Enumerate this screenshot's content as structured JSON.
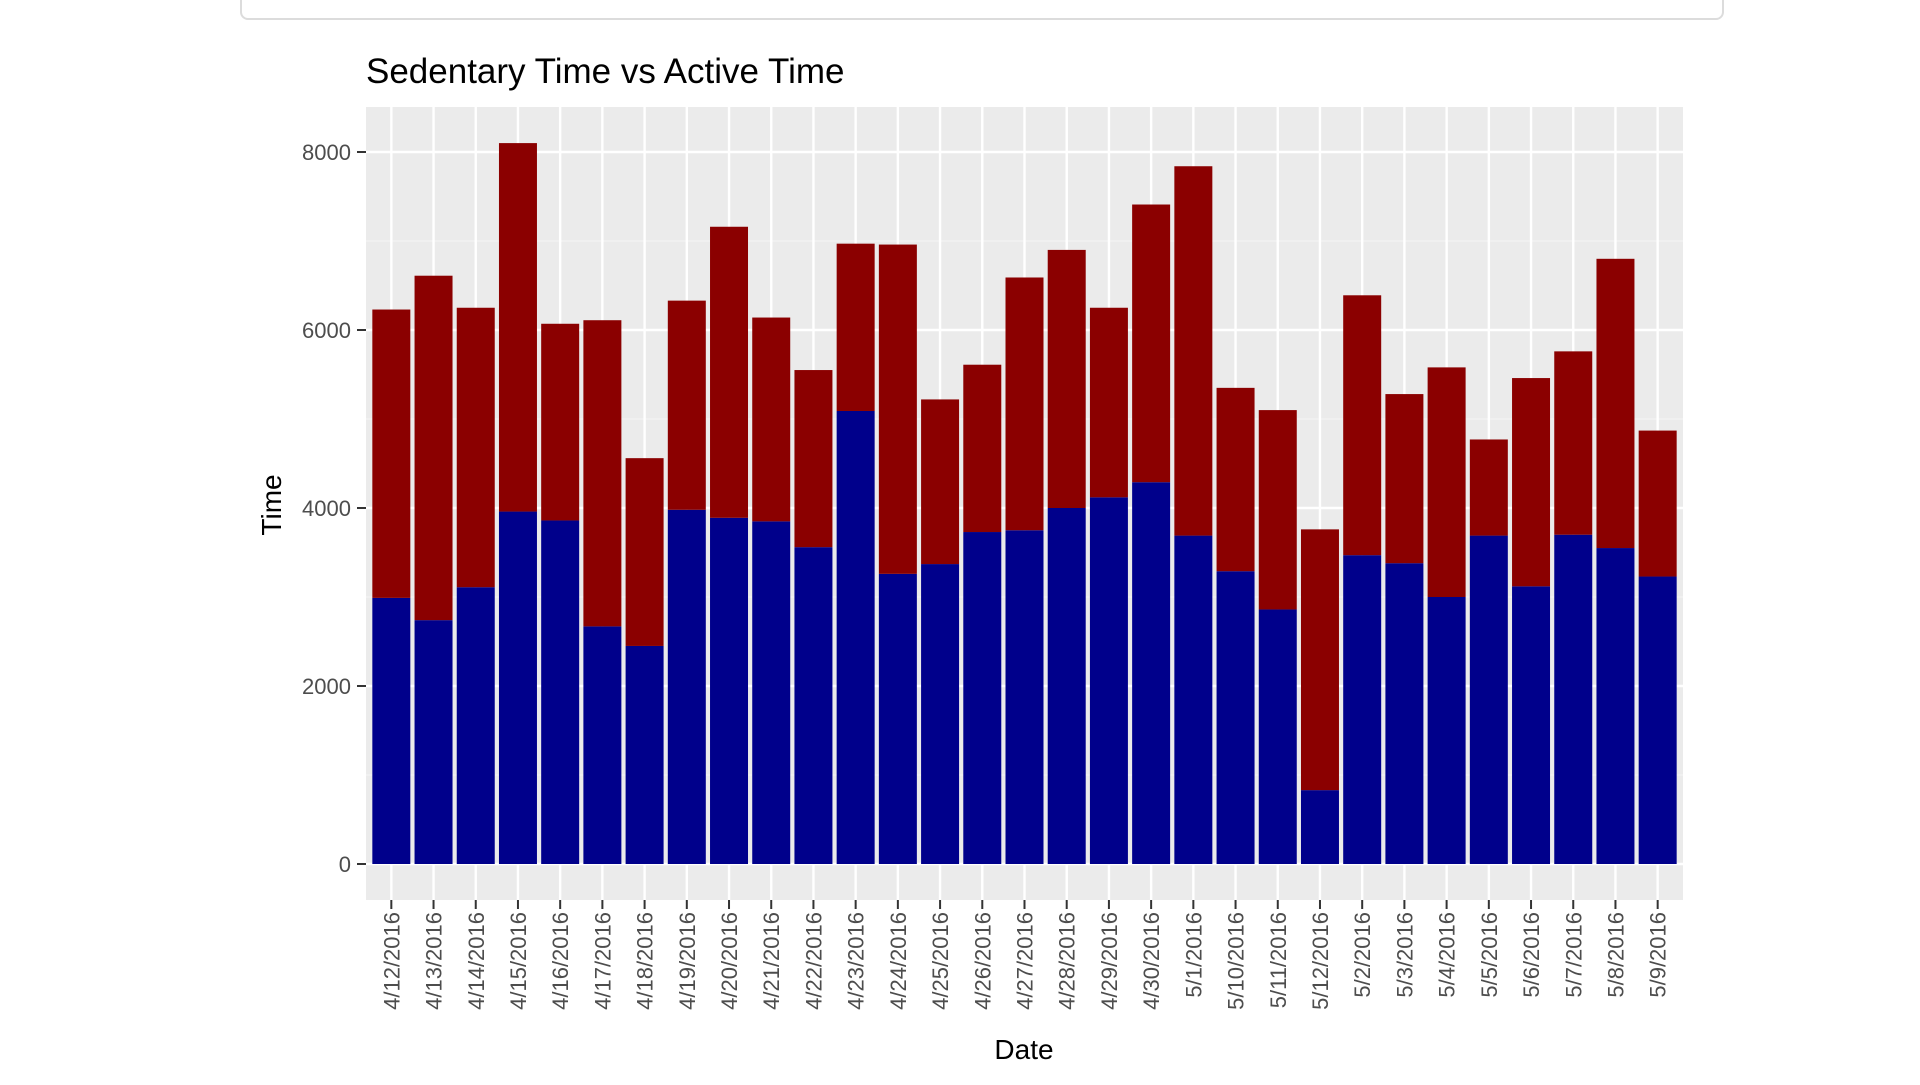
{
  "colors": {
    "panel_background": "#ebebeb",
    "grid_major": "#ffffff",
    "grid_minor": "#f3f3f3",
    "sedentary": "#8b0000",
    "active": "#00008b",
    "tick_text": "#4d4d4d",
    "title_text": "#000000"
  },
  "chart_data": {
    "type": "bar",
    "stacked": true,
    "title": "Sedentary Time vs Active Time",
    "xlabel": "Date",
    "ylabel": "Time",
    "ylim": [
      0,
      8500
    ],
    "yticks": [
      0,
      2000,
      4000,
      6000,
      8000
    ],
    "grid": true,
    "legend": "none",
    "categories": [
      "4/12/2016",
      "4/13/2016",
      "4/14/2016",
      "4/15/2016",
      "4/16/2016",
      "4/17/2016",
      "4/18/2016",
      "4/19/2016",
      "4/20/2016",
      "4/21/2016",
      "4/22/2016",
      "4/23/2016",
      "4/24/2016",
      "4/25/2016",
      "4/26/2016",
      "4/27/2016",
      "4/28/2016",
      "4/29/2016",
      "4/30/2016",
      "5/1/2016",
      "5/10/2016",
      "5/11/2016",
      "5/12/2016",
      "5/2/2016",
      "5/3/2016",
      "5/4/2016",
      "5/5/2016",
      "5/6/2016",
      "5/7/2016",
      "5/8/2016",
      "5/9/2016"
    ],
    "series": [
      {
        "color": "#00008b",
        "values": [
          2990,
          2740,
          3110,
          3960,
          3860,
          2670,
          2450,
          3980,
          3890,
          3850,
          3560,
          5090,
          3260,
          3370,
          3730,
          3750,
          4000,
          4120,
          4290,
          3690,
          3290,
          2860,
          830,
          3470,
          3380,
          3000,
          3690,
          3120,
          3700,
          3550,
          3230
        ]
      },
      {
        "color": "#8b0000",
        "values": [
          3240,
          3870,
          3140,
          4140,
          2210,
          3440,
          2110,
          2350,
          3270,
          2290,
          1990,
          1880,
          3700,
          1850,
          1880,
          2840,
          2900,
          2130,
          3120,
          4150,
          2060,
          2240,
          2930,
          2920,
          1900,
          2580,
          1080,
          2340,
          2060,
          3250,
          1640
        ]
      }
    ]
  }
}
